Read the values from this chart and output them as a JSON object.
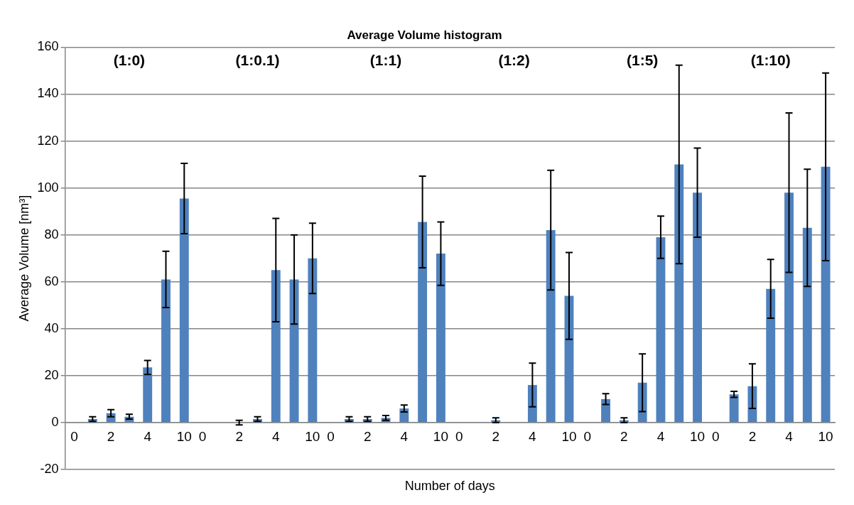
{
  "chart_data": {
    "type": "bar",
    "title": "Average Volume histogram",
    "xlabel": "Number of days",
    "ylabel": "Average Volume [nm³]",
    "categories": [
      "0",
      null,
      "2",
      null,
      "4",
      null,
      "10",
      "0",
      null,
      "2",
      null,
      "4",
      null,
      "10",
      "0",
      null,
      "2",
      null,
      "4",
      null,
      "10",
      "0",
      null,
      "2",
      null,
      "4",
      null,
      "10",
      "0",
      null,
      "2",
      null,
      "4",
      null,
      "10",
      "0",
      null,
      "2",
      null,
      "4",
      null,
      "10"
    ],
    "values": [
      0.2,
      1.5,
      4,
      2.5,
      23.5,
      61,
      95.5,
      0.2,
      null,
      0,
      1.5,
      65,
      61,
      70,
      0.2,
      1.5,
      1.5,
      2,
      6,
      85.5,
      72,
      null,
      null,
      1,
      null,
      16,
      82,
      54,
      0.2,
      10,
      1,
      17,
      79,
      110,
      98,
      null,
      12,
      15.5,
      57,
      98,
      83,
      109
    ],
    "errors": [
      null,
      1,
      1.5,
      1,
      3,
      12,
      15,
      null,
      null,
      1,
      1,
      22,
      19,
      15,
      null,
      1,
      1,
      1,
      1.5,
      19.5,
      13.5,
      null,
      null,
      1,
      null,
      9.3,
      25.5,
      18.5,
      null,
      2.3,
      1,
      12.3,
      9,
      42.3,
      19,
      null,
      1.3,
      9.5,
      12.5,
      34,
      25,
      40
    ],
    "color": "#4f81bd",
    "annotations": [
      "(1:0)",
      "(1:0.1)",
      "(1:1)",
      "(1:2)",
      "(1:5)",
      "(1:10)"
    ],
    "ylim": [
      -20,
      160
    ],
    "yticks": [
      -20,
      0,
      20,
      40,
      60,
      80,
      100,
      120,
      140,
      160
    ],
    "grid": "y",
    "legend": false
  }
}
